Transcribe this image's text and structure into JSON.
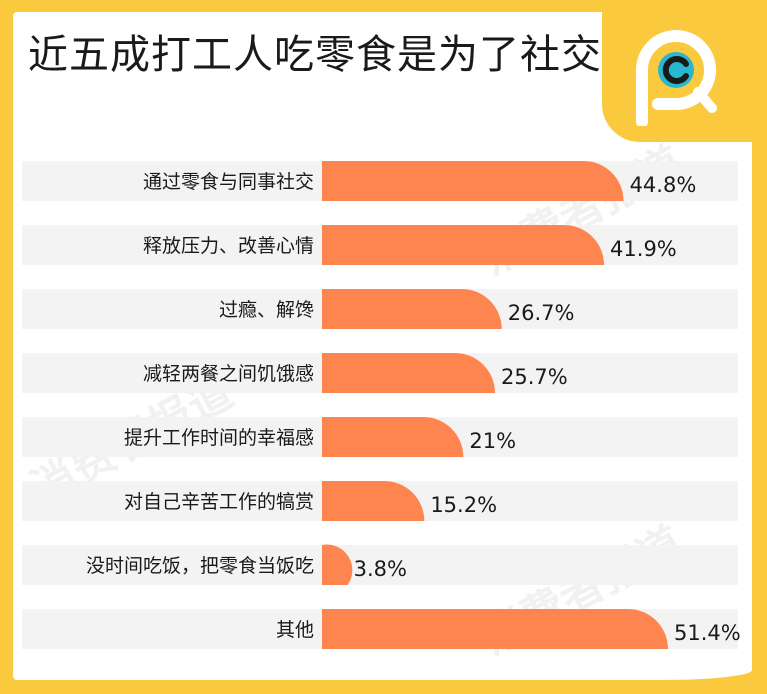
{
  "title": "近五成打工人吃零食是为了社交",
  "watermark_text": "消费者报道",
  "colors": {
    "frame": "#FBC93D",
    "bar": "#FF8550",
    "track": "#F3F3F3",
    "logo_blue": "#27B7D1"
  },
  "chart_data": {
    "type": "bar",
    "orientation": "horizontal",
    "unit": "%",
    "xlim": [
      0,
      60
    ],
    "categories": [
      "通过零食与同事社交",
      "释放压力、改善心情",
      "过瘾、解馋",
      "减轻两餐之间饥饿感",
      "提升工作时间的幸福感",
      "对自己辛苦工作的犒赏",
      "没时间吃饭，把零食当饭吃",
      "其他"
    ],
    "values": [
      44.8,
      41.9,
      26.7,
      25.7,
      21,
      15.2,
      3.8,
      51.4
    ],
    "value_labels": [
      "44.8%",
      "41.9%",
      "26.7%",
      "25.7%",
      "21%",
      "15.2%",
      "3.8%",
      "51.4%"
    ]
  }
}
